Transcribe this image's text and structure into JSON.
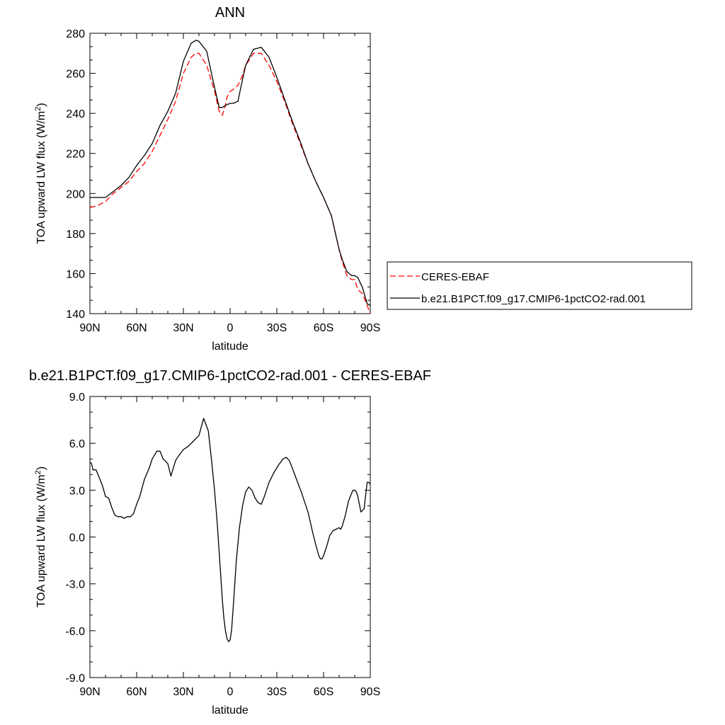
{
  "chart_data": [
    {
      "type": "line",
      "title": "ANN",
      "xlabel": "latitude",
      "ylabel": "TOA upward LW flux (W/m²)",
      "xlim": [
        90,
        -90
      ],
      "ylim": [
        140,
        280
      ],
      "x_ticks": [
        90,
        60,
        30,
        0,
        -30,
        -60,
        -90
      ],
      "x_tick_labels": [
        "90N",
        "60N",
        "30N",
        "0",
        "30S",
        "60S",
        "90S"
      ],
      "y_ticks": [
        140,
        160,
        180,
        200,
        220,
        240,
        260,
        280
      ],
      "y_tick_labels": [
        "140",
        "160",
        "180",
        "200",
        "220",
        "240",
        "260",
        "280"
      ],
      "legend_position": "right",
      "series": [
        {
          "name": "CERES-EBAF",
          "color": "#ff0000",
          "dash": "dashed",
          "x": [
            90,
            85,
            80,
            75,
            70,
            65,
            60,
            55,
            50,
            45,
            40,
            35,
            30,
            25,
            22,
            20,
            15,
            10,
            7,
            5,
            3,
            2,
            0,
            -2,
            -5,
            -8,
            -10,
            -15,
            -20,
            -25,
            -30,
            -35,
            -40,
            -45,
            -50,
            -55,
            -60,
            -65,
            -70,
            -72,
            -75,
            -78,
            -80,
            -82,
            -85,
            -88,
            -90
          ],
          "y": [
            193,
            194,
            196,
            200,
            203,
            206,
            211,
            215,
            221,
            229,
            237,
            246,
            260,
            268,
            270,
            270,
            264,
            251,
            241,
            239,
            244,
            248,
            251,
            252,
            254,
            259,
            264,
            270,
            270,
            264,
            256,
            246,
            235,
            225,
            215,
            206,
            198,
            189,
            172,
            166,
            159,
            157,
            157,
            152,
            150,
            144,
            140
          ]
        },
        {
          "name": "b.e21.B1PCT.f09_g17.CMIP6-1pctCO2-rad.001",
          "color": "#000000",
          "dash": "solid",
          "x": [
            90,
            85,
            80,
            75,
            70,
            65,
            60,
            55,
            50,
            45,
            40,
            35,
            30,
            25,
            22,
            20,
            15,
            10,
            7,
            5,
            3,
            0,
            -2,
            -5,
            -8,
            -10,
            -15,
            -20,
            -25,
            -30,
            -35,
            -40,
            -45,
            -50,
            -55,
            -60,
            -65,
            -70,
            -72,
            -75,
            -78,
            -80,
            -82,
            -85,
            -88,
            -90
          ],
          "y": [
            198,
            198,
            198,
            201,
            204,
            208,
            214,
            219,
            225,
            234,
            241,
            250,
            266,
            275,
            276.5,
            276,
            271,
            253,
            243,
            243,
            244,
            245,
            245,
            246,
            257,
            264,
            272,
            273,
            268,
            258,
            247,
            236,
            226,
            215,
            206,
            198,
            189,
            172,
            167,
            161,
            159,
            159,
            158,
            153,
            145,
            144
          ]
        }
      ]
    },
    {
      "type": "line",
      "title": "b.e21.B1PCT.f09_g17.CMIP6-1pctCO2-rad.001 - CERES-EBAF",
      "xlabel": "latitude",
      "ylabel": "TOA upward LW flux (W/m²)",
      "xlim": [
        90,
        -90
      ],
      "ylim": [
        -9,
        9
      ],
      "x_ticks": [
        90,
        60,
        30,
        0,
        -30,
        -60,
        -90
      ],
      "x_tick_labels": [
        "90N",
        "60N",
        "30N",
        "0",
        "30S",
        "60S",
        "90S"
      ],
      "y_ticks": [
        -9,
        -6,
        -3,
        0,
        3,
        6,
        9
      ],
      "y_tick_labels": [
        "-9.0",
        "-6.0",
        "-3.0",
        "0.0",
        "3.0",
        "6.0",
        "9.0"
      ],
      "series": [
        {
          "color": "#000000",
          "dash": "solid",
          "x": [
            90,
            89,
            88,
            86,
            84,
            82,
            80,
            78,
            76,
            74,
            72,
            70,
            68,
            66,
            64,
            62,
            60,
            58,
            55,
            52,
            50,
            47,
            45,
            43,
            40,
            38,
            35,
            33,
            30,
            27,
            24,
            20,
            17,
            14,
            12,
            10,
            9,
            8,
            7,
            6,
            5,
            4,
            3,
            2,
            1,
            0,
            -1,
            -2,
            -3,
            -4,
            -6,
            -8,
            -10,
            -12,
            -14,
            -16,
            -18,
            -20,
            -22,
            -25,
            -28,
            -31,
            -34,
            -36,
            -38,
            -40,
            -43,
            -46,
            -50,
            -53,
            -55,
            -57,
            -58,
            -59,
            -60,
            -62,
            -64,
            -66,
            -68,
            -70,
            -71,
            -72,
            -74,
            -76,
            -78,
            -79,
            -80,
            -81,
            -82,
            -84,
            -86,
            -88,
            -89,
            -90
          ],
          "y": [
            4.8,
            4.7,
            4.3,
            4.3,
            3.8,
            3.3,
            2.6,
            2.5,
            1.9,
            1.4,
            1.3,
            1.3,
            1.2,
            1.3,
            1.3,
            1.5,
            2.1,
            2.6,
            3.7,
            4.4,
            5.0,
            5.5,
            5.5,
            5.0,
            4.7,
            3.9,
            4.9,
            5.2,
            5.6,
            5.8,
            6.1,
            6.5,
            7.6,
            6.8,
            5.0,
            3.0,
            1.8,
            0.5,
            -1.0,
            -2.5,
            -4.0,
            -5.2,
            -6.0,
            -6.5,
            -6.7,
            -6.6,
            -5.9,
            -4.5,
            -3.0,
            -1.5,
            0.6,
            2.0,
            2.9,
            3.2,
            3.0,
            2.5,
            2.2,
            2.1,
            2.6,
            3.5,
            4.1,
            4.6,
            5.0,
            5.1,
            4.9,
            4.4,
            3.6,
            2.8,
            1.6,
            0.3,
            -0.5,
            -1.2,
            -1.4,
            -1.4,
            -1.2,
            -0.6,
            0.1,
            0.4,
            0.5,
            0.6,
            0.5,
            0.7,
            1.4,
            2.3,
            2.8,
            3.0,
            3.0,
            2.9,
            2.6,
            1.6,
            1.8,
            3.5,
            3.5,
            3.4
          ]
        }
      ]
    }
  ]
}
